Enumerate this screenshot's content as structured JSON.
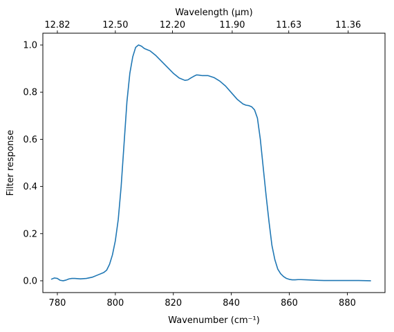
{
  "chart_data": {
    "type": "line",
    "xlabel": "Wavenumber (cm⁻¹)",
    "ylabel": "Filter response",
    "top_xlabel": "Wavelength (μm)",
    "xlim": [
      775,
      893
    ],
    "ylim": [
      -0.05,
      1.05
    ],
    "grid": false,
    "line_color": "#1f77b4",
    "x_ticks": [
      780,
      800,
      820,
      840,
      860,
      880
    ],
    "y_ticks": [
      0.0,
      0.2,
      0.4,
      0.6,
      0.8,
      1.0
    ],
    "y_tick_labels": [
      "0.0",
      "0.2",
      "0.4",
      "0.6",
      "0.8",
      "1.0"
    ],
    "top_ticks": [
      {
        "label": "12.82",
        "wavenumber": 780.0
      },
      {
        "label": "12.50",
        "wavenumber": 800.0
      },
      {
        "label": "12.20",
        "wavenumber": 819.7
      },
      {
        "label": "11.90",
        "wavenumber": 840.3
      },
      {
        "label": "11.63",
        "wavenumber": 859.8
      },
      {
        "label": "11.36",
        "wavenumber": 880.3
      }
    ],
    "series": [
      {
        "x": [
          778,
          779,
          780,
          781,
          782,
          783,
          784,
          785,
          786,
          788,
          790,
          792,
          794,
          796,
          797,
          798,
          799,
          800,
          801,
          802,
          803,
          804,
          805,
          806,
          807,
          808,
          809,
          810,
          811,
          812,
          813,
          814,
          816,
          818,
          820,
          822,
          824,
          825,
          826,
          827,
          828,
          829,
          830,
          831,
          832,
          834,
          836,
          838,
          840,
          842,
          844,
          845,
          846,
          847,
          848,
          849,
          850,
          851,
          852,
          853,
          854,
          855,
          856,
          857,
          858,
          859,
          860,
          861,
          862,
          863,
          864,
          866,
          868,
          870,
          872,
          874,
          876,
          880,
          884,
          888
        ],
        "y": [
          0.007,
          0.012,
          0.01,
          0.002,
          0.0,
          0.003,
          0.008,
          0.01,
          0.01,
          0.008,
          0.01,
          0.015,
          0.025,
          0.035,
          0.045,
          0.07,
          0.11,
          0.17,
          0.26,
          0.4,
          0.58,
          0.76,
          0.88,
          0.95,
          0.99,
          1.0,
          0.995,
          0.985,
          0.98,
          0.975,
          0.965,
          0.955,
          0.93,
          0.905,
          0.88,
          0.86,
          0.85,
          0.852,
          0.86,
          0.867,
          0.873,
          0.872,
          0.87,
          0.87,
          0.87,
          0.862,
          0.847,
          0.826,
          0.798,
          0.77,
          0.75,
          0.745,
          0.743,
          0.738,
          0.725,
          0.69,
          0.6,
          0.48,
          0.36,
          0.25,
          0.15,
          0.09,
          0.05,
          0.03,
          0.018,
          0.01,
          0.006,
          0.004,
          0.004,
          0.005,
          0.005,
          0.004,
          0.003,
          0.002,
          0.001,
          0.001,
          0.001,
          0.001,
          0.001,
          0.0
        ]
      }
    ]
  }
}
